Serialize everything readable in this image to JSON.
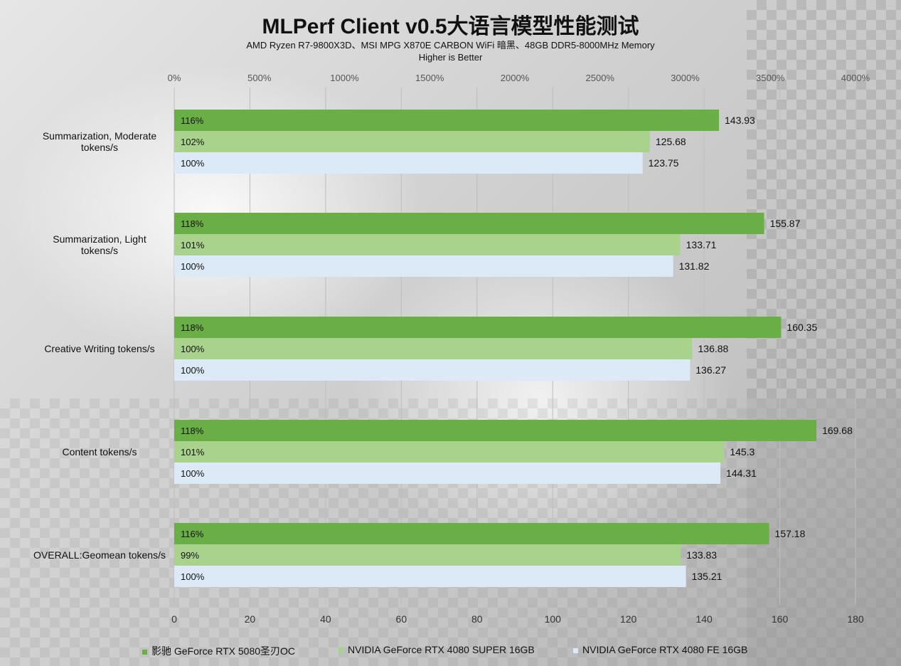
{
  "title": "MLPerf Client v0.5大语言模型性能测试",
  "subtitle_line1": "AMD Ryzen R7-9800X3D、MSI MPG X870E CARBON WiFi 暗黑、48GB DDR5-8000MHz Memory",
  "subtitle_line2": "Higher is Better",
  "colors": {
    "series1": "#6aaf45",
    "series2": "#a9d38d",
    "series3": "#dce9f6"
  },
  "chart_data": {
    "type": "bar",
    "orientation": "horizontal",
    "categories": [
      "Summarization, Moderate tokens/s",
      "Summarization, Light tokens/s",
      "Creative Writing tokens/s",
      "Content tokens/s",
      "OVERALL:Geomean tokens/s"
    ],
    "series": [
      {
        "name": "影驰 GeForce RTX 5080圣刃OC",
        "values": [
          143.93,
          155.87,
          160.35,
          169.68,
          157.18
        ],
        "percent_labels": [
          "116%",
          "118%",
          "118%",
          "118%",
          "116%"
        ]
      },
      {
        "name": "NVIDIA GeForce RTX 4080 SUPER 16GB",
        "values": [
          125.68,
          133.71,
          136.88,
          145.3,
          133.83
        ],
        "percent_labels": [
          "102%",
          "101%",
          "100%",
          "101%",
          "99%"
        ]
      },
      {
        "name": "NVIDIA GeForce RTX 4080 FE 16GB",
        "values": [
          123.75,
          131.82,
          136.27,
          144.31,
          135.21
        ],
        "percent_labels": [
          "100%",
          "100%",
          "100%",
          "100%",
          "100%"
        ]
      }
    ],
    "xlim": [
      0,
      180
    ],
    "x_ticks": [
      "0",
      "20",
      "40",
      "60",
      "80",
      "100",
      "120",
      "140",
      "160",
      "180"
    ],
    "secondary_xlim": [
      0,
      4000
    ],
    "secondary_x_ticks": [
      "0%",
      "500%",
      "1000%",
      "1500%",
      "2000%",
      "2500%",
      "3000%",
      "3500%",
      "4000%"
    ],
    "grid": true,
    "legend_position": "bottom"
  }
}
